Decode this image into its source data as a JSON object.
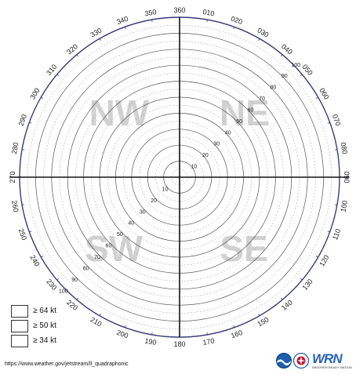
{
  "diagram": {
    "bearing_labels": [
      "360",
      "010",
      "020",
      "030",
      "040",
      "050",
      "060",
      "070",
      "080",
      "090",
      "100",
      "110",
      "120",
      "130",
      "140",
      "150",
      "160",
      "170",
      "180",
      "190",
      "200",
      "210",
      "220",
      "230",
      "240",
      "250",
      "260",
      "270",
      "280",
      "290",
      "300",
      "310",
      "320",
      "330",
      "340",
      "350"
    ],
    "range_labels": [
      "10",
      "20",
      "30",
      "40",
      "50",
      "60",
      "70",
      "80",
      "90",
      "100"
    ],
    "quadrants": {
      "nw": "NW",
      "ne": "NE",
      "sw": "SW",
      "se": "SE"
    }
  },
  "legend": [
    {
      "label": "≥ 64 kt"
    },
    {
      "label": "≥ 50 kt"
    },
    {
      "label": "≥ 34 kt"
    }
  ],
  "footer": {
    "url": "https://www.weather.gov/jetstream/ll_quadraphonic",
    "wrn_mark": "WRN",
    "wrn_sub": "WEATHER-READY NATION"
  },
  "colors": {
    "rim": "#3a3a7a",
    "axis": "#111111",
    "quadrant_text": "#c9c9c9",
    "wrn": "#2b63b5"
  }
}
